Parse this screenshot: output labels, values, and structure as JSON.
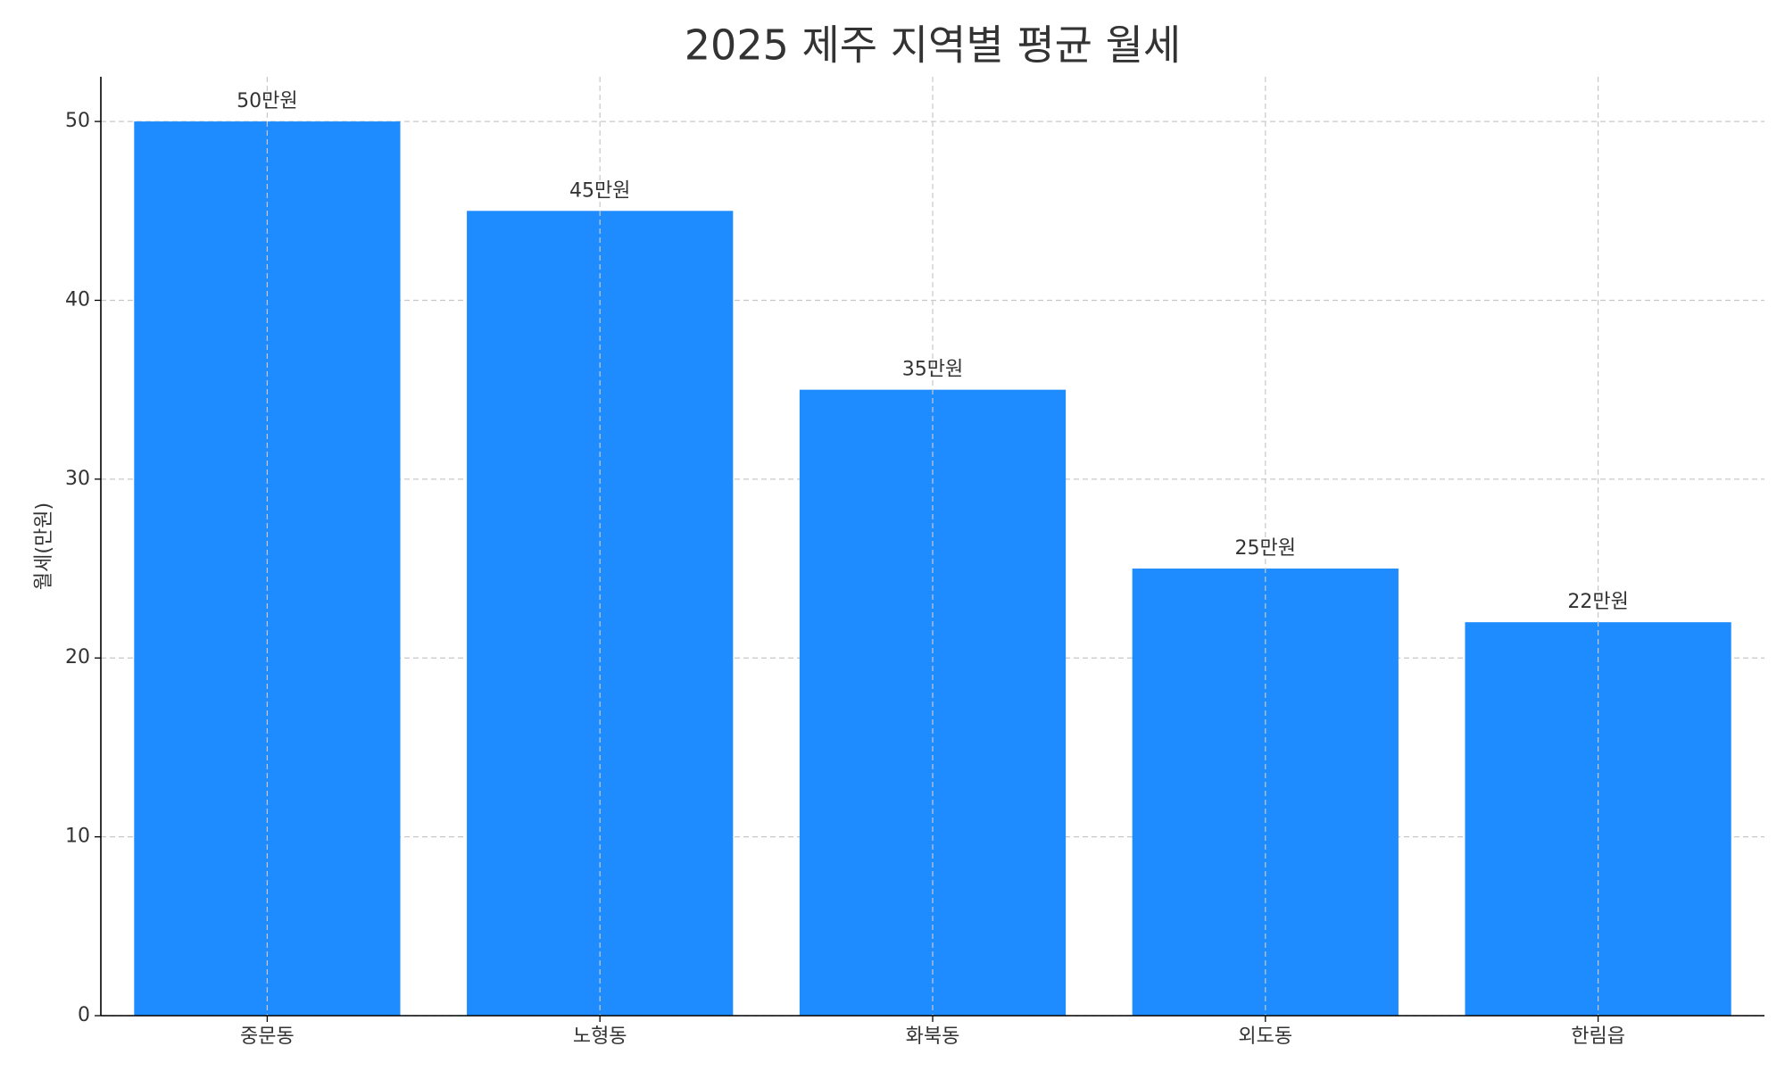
{
  "chart_data": {
    "type": "bar",
    "title": "2025 제주 지역별 평균 월세",
    "y_label": "월세(만원)",
    "categories": [
      "중문동",
      "노형동",
      "화북동",
      "외도동",
      "한림읍"
    ],
    "values": [
      50,
      45,
      35,
      25,
      22
    ],
    "value_labels": [
      "50만원",
      "45만원",
      "35만원",
      "25만원",
      "22만원"
    ],
    "color": "#1e8cff",
    "ylim": [
      0,
      52.5
    ],
    "yticks": [
      0,
      10,
      20,
      30,
      40,
      50
    ],
    "grid": true
  }
}
